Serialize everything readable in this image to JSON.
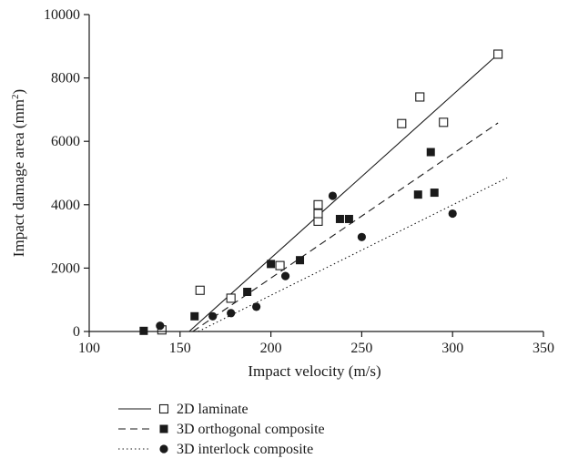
{
  "chart_data": {
    "type": "scatter",
    "title": "",
    "xlabel": "Impact velocity (m/s)",
    "ylabel_main": "Impact damage area (mm",
    "ylabel_sup": "2",
    "ylabel_close": ")",
    "xlim": [
      100,
      350
    ],
    "ylim": [
      0,
      10000
    ],
    "xticks": [
      100,
      150,
      200,
      250,
      300,
      350
    ],
    "yticks": [
      0,
      2000,
      4000,
      6000,
      8000,
      10000
    ],
    "grid": false,
    "legend_position": "bottom-left, below plot",
    "series": [
      {
        "name": "2D laminate",
        "marker": "open-square",
        "line_style": "solid",
        "points": [
          [
            140,
            50
          ],
          [
            161,
            1300
          ],
          [
            178,
            1050
          ],
          [
            205,
            2080
          ],
          [
            226,
            3480
          ],
          [
            226,
            3720
          ],
          [
            226,
            4000
          ],
          [
            272,
            6560
          ],
          [
            282,
            7400
          ],
          [
            295,
            6600
          ],
          [
            325,
            8750
          ]
        ],
        "fit": [
          [
            155,
            0
          ],
          [
            325,
            8750
          ]
        ]
      },
      {
        "name": "3D orthogonal composite",
        "marker": "filled-square",
        "line_style": "dashed",
        "points": [
          [
            130,
            20
          ],
          [
            158,
            480
          ],
          [
            187,
            1250
          ],
          [
            200,
            2130
          ],
          [
            216,
            2250
          ],
          [
            238,
            3550
          ],
          [
            243,
            3550
          ],
          [
            281,
            4320
          ],
          [
            288,
            5660
          ],
          [
            290,
            4380
          ]
        ],
        "fit": [
          [
            157,
            0
          ],
          [
            325,
            6580
          ]
        ]
      },
      {
        "name": "3D interlock composite",
        "marker": "filled-circle",
        "line_style": "dotted",
        "points": [
          [
            139,
            180
          ],
          [
            168,
            480
          ],
          [
            178,
            580
          ],
          [
            192,
            780
          ],
          [
            208,
            1750
          ],
          [
            234,
            4280
          ],
          [
            250,
            2980
          ],
          [
            300,
            3720
          ]
        ],
        "fit": [
          [
            160,
            0
          ],
          [
            330,
            4850
          ]
        ]
      }
    ]
  }
}
